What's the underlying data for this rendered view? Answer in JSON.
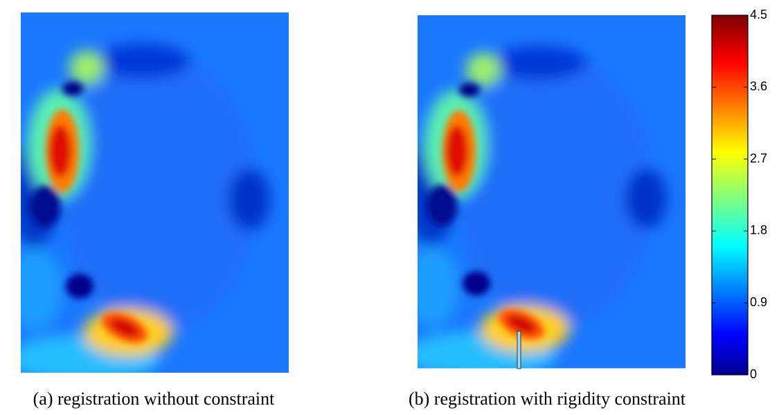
{
  "figure": {
    "panels": [
      {
        "caption": "(a) registration without constraint"
      },
      {
        "caption": "(b) registration with rigidity constraint"
      }
    ],
    "colorbar": {
      "colormap": "jet",
      "lim": [
        0,
        4.5
      ],
      "ticks": [
        0,
        0.9,
        1.8,
        2.7,
        3.6,
        4.5
      ]
    }
  }
}
